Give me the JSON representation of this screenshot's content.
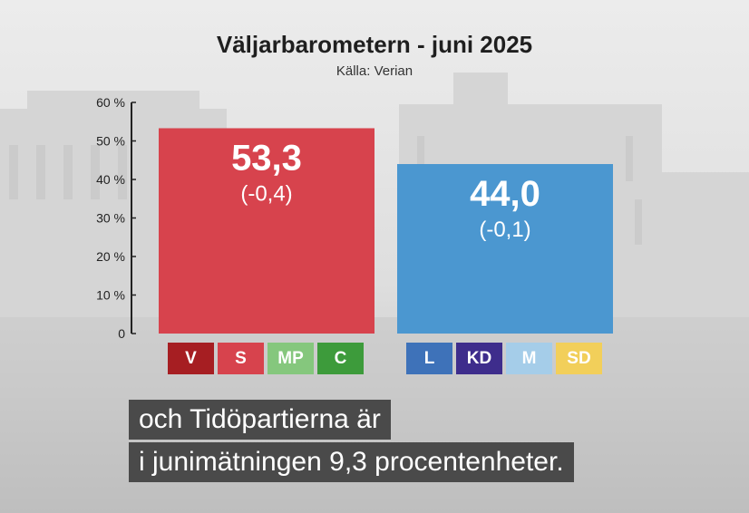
{
  "title": "Väljarbarometern - juni 2025",
  "source": "Källa: Verian",
  "colors": {
    "left_bloc": "#d7434d",
    "right_bloc": "#4b97d0"
  },
  "parties_left": [
    {
      "label": "V",
      "color": "#a61e22"
    },
    {
      "label": "S",
      "color": "#d7434d"
    },
    {
      "label": "MP",
      "color": "#85c77d"
    },
    {
      "label": "C",
      "color": "#3d9b3b"
    }
  ],
  "parties_right": [
    {
      "label": "L",
      "color": "#3e72b9"
    },
    {
      "label": "KD",
      "color": "#3e2d8c"
    },
    {
      "label": "M",
      "color": "#a5cde9"
    },
    {
      "label": "SD",
      "color": "#f2cf5a"
    }
  ],
  "chart_data": {
    "type": "bar",
    "title": "Väljarbarometern - juni 2025",
    "subtitle": "Källa: Verian",
    "xlabel": "",
    "ylabel": "",
    "ylim": [
      0,
      60
    ],
    "yticks": [
      "0",
      "10 %",
      "20 %",
      "30 %",
      "40 %",
      "50 %",
      "60 %"
    ],
    "categories": [
      "V S MP C",
      "L KD M SD"
    ],
    "values": [
      53.3,
      44.0
    ],
    "value_labels": [
      "53,3",
      "44,0"
    ],
    "change_labels": [
      "(-0,4)",
      "(-0,1)"
    ],
    "grid": false
  },
  "subtitles": [
    "och Tidöpartierna är",
    "i junimätningen 9,3 procentenheter."
  ]
}
